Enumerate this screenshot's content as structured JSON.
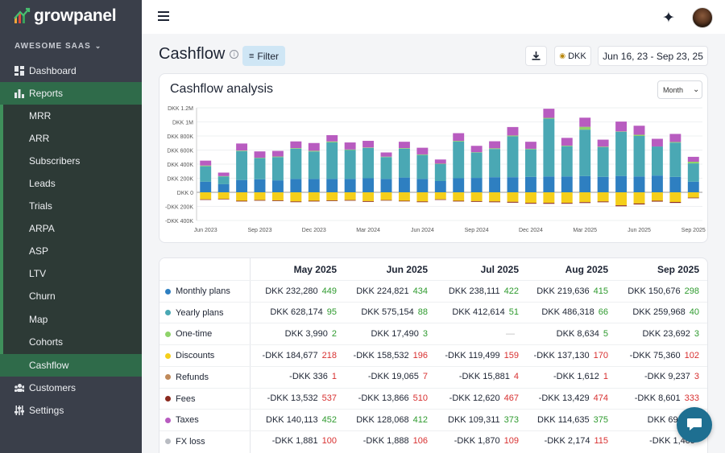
{
  "app": {
    "name": "growpanel"
  },
  "sidebar": {
    "workspace": "AWESOME SAAS",
    "items": [
      {
        "label": "Dashboard",
        "icon": "dashboard-icon"
      },
      {
        "label": "Reports",
        "icon": "bar-chart-icon"
      },
      {
        "label": "MRR"
      },
      {
        "label": "ARR"
      },
      {
        "label": "Subscribers"
      },
      {
        "label": "Leads"
      },
      {
        "label": "Trials"
      },
      {
        "label": "ARPA"
      },
      {
        "label": "ASP"
      },
      {
        "label": "LTV"
      },
      {
        "label": "Churn"
      },
      {
        "label": "Map"
      },
      {
        "label": "Cohorts"
      },
      {
        "label": "Cashflow"
      },
      {
        "label": "Customers",
        "icon": "users-icon"
      },
      {
        "label": "Settings",
        "icon": "sliders-icon"
      }
    ]
  },
  "header": {
    "title": "Cashflow",
    "filter_label": "Filter",
    "currency_label": "DKK",
    "date_range": "Jun 16, 23 - Sep 23, 25"
  },
  "chart_card": {
    "title": "Cashflow analysis",
    "period": "Month"
  },
  "chart_data": {
    "type": "bar",
    "ylabel": "",
    "y_ticks": [
      "DKK 1.2M",
      "DKK 1M",
      "DKK 800K",
      "DKK 600K",
      "DKK 400K",
      "DKK 200K",
      "DKK 0",
      "-DKK 200K",
      "-DKK 400K"
    ],
    "ylim": [
      -400000,
      1200000
    ],
    "x_ticks": [
      "Jun 2023",
      "Sep 2023",
      "Dec 2023",
      "Mar 2024",
      "Jun 2024",
      "Sep 2024",
      "Dec 2024",
      "Mar 2025",
      "Jun 2025",
      "Sep 2025"
    ],
    "categories": [
      "Jun 2023",
      "Jul 2023",
      "Aug 2023",
      "Sep 2023",
      "Oct 2023",
      "Nov 2023",
      "Dec 2023",
      "Jan 2024",
      "Feb 2024",
      "Mar 2024",
      "Apr 2024",
      "May 2024",
      "Jun 2024",
      "Jul 2024",
      "Aug 2024",
      "Sep 2024",
      "Oct 2024",
      "Nov 2024",
      "Dec 2024",
      "Jan 2025",
      "Feb 2025",
      "Mar 2025",
      "Apr 2025",
      "May 2025",
      "Jun 2025",
      "Jul 2025",
      "Aug 2025",
      "Sep 2025"
    ],
    "series": [
      {
        "name": "Monthly plans",
        "color": "#2e7fc1",
        "values": [
          150000,
          115000,
          175000,
          185000,
          170000,
          190000,
          190000,
          190000,
          190000,
          200000,
          190000,
          210000,
          190000,
          160000,
          200000,
          205000,
          215000,
          215000,
          220000,
          225000,
          225000,
          230000,
          220000,
          232280,
          224821,
          238111,
          219636,
          150676
        ]
      },
      {
        "name": "Yearly plans",
        "color": "#4aa8b4",
        "values": [
          220000,
          110000,
          410000,
          300000,
          330000,
          430000,
          390000,
          520000,
          410000,
          430000,
          310000,
          410000,
          340000,
          240000,
          520000,
          360000,
          400000,
          580000,
          390000,
          820000,
          430000,
          660000,
          420000,
          628174,
          575154,
          412614,
          486318,
          259968
        ]
      },
      {
        "name": "One-time",
        "color": "#8fd36a",
        "values": [
          10000,
          5000,
          8000,
          6000,
          8000,
          8000,
          10000,
          12000,
          8000,
          6000,
          6000,
          8000,
          8000,
          6000,
          10000,
          5000,
          10000,
          12000,
          8000,
          12000,
          8000,
          40000,
          8000,
          3990,
          17490,
          0,
          8634,
          23692
        ]
      },
      {
        "name": "Taxes",
        "color": "#b85cc0",
        "values": [
          70000,
          50000,
          100000,
          90000,
          80000,
          95000,
          110000,
          90000,
          100000,
          95000,
          60000,
          90000,
          95000,
          60000,
          110000,
          90000,
          100000,
          120000,
          100000,
          130000,
          110000,
          130000,
          100000,
          140113,
          128068,
          109311,
          114635,
          69655
        ]
      },
      {
        "name": "Discounts",
        "color": "#f5cf1a",
        "values": [
          -100000,
          -95000,
          -120000,
          -110000,
          -115000,
          -130000,
          -120000,
          -115000,
          -110000,
          -125000,
          -110000,
          -120000,
          -130000,
          -100000,
          -120000,
          -125000,
          -130000,
          -135000,
          -150000,
          -150000,
          -150000,
          -140000,
          -130000,
          -184677,
          -158532,
          -119499,
          -137130,
          -75360
        ]
      },
      {
        "name": "Fees",
        "color": "#8b2a1f",
        "values": [
          -8000,
          -7000,
          -10000,
          -9000,
          -9000,
          -10000,
          -10000,
          -9000,
          -9000,
          -10000,
          -8000,
          -9000,
          -10000,
          -8000,
          -10000,
          -10000,
          -11000,
          -12000,
          -12000,
          -13000,
          -12000,
          -12000,
          -11000,
          -13532,
          -13866,
          -12620,
          -13429,
          -8601
        ]
      }
    ]
  },
  "table": {
    "months": [
      "May 2025",
      "Jun 2025",
      "Jul 2025",
      "Aug 2025",
      "Sep 2025"
    ],
    "rows": [
      {
        "label": "Monthly plans",
        "color": "#2e7fc1",
        "cells": [
          {
            "v": "DKK 232,280",
            "c": "449",
            "t": "g"
          },
          {
            "v": "DKK 224,821",
            "c": "434",
            "t": "g"
          },
          {
            "v": "DKK 238,111",
            "c": "422",
            "t": "g"
          },
          {
            "v": "DKK 219,636",
            "c": "415",
            "t": "g"
          },
          {
            "v": "DKK 150,676",
            "c": "298",
            "t": "g"
          }
        ]
      },
      {
        "label": "Yearly plans",
        "color": "#4aa8b4",
        "cells": [
          {
            "v": "DKK 628,174",
            "c": "95",
            "t": "g"
          },
          {
            "v": "DKK 575,154",
            "c": "88",
            "t": "g"
          },
          {
            "v": "DKK 412,614",
            "c": "51",
            "t": "g"
          },
          {
            "v": "DKK 486,318",
            "c": "66",
            "t": "g"
          },
          {
            "v": "DKK 259,968",
            "c": "40",
            "t": "g"
          }
        ]
      },
      {
        "label": "One-time",
        "color": "#8fd36a",
        "cells": [
          {
            "v": "DKK 3,990",
            "c": "2",
            "t": "g"
          },
          {
            "v": "DKK 17,490",
            "c": "3",
            "t": "g"
          },
          {
            "v": "—",
            "c": "",
            "t": "n"
          },
          {
            "v": "DKK 8,634",
            "c": "5",
            "t": "g"
          },
          {
            "v": "DKK 23,692",
            "c": "3",
            "t": "g"
          }
        ]
      },
      {
        "label": "Discounts",
        "color": "#f5cf1a",
        "cells": [
          {
            "v": "-DKK 184,677",
            "c": "218",
            "t": "r"
          },
          {
            "v": "-DKK 158,532",
            "c": "196",
            "t": "r"
          },
          {
            "v": "-DKK 119,499",
            "c": "159",
            "t": "r"
          },
          {
            "v": "-DKK 137,130",
            "c": "170",
            "t": "r"
          },
          {
            "v": "-DKK 75,360",
            "c": "102",
            "t": "r"
          }
        ]
      },
      {
        "label": "Refunds",
        "color": "#c08a5a",
        "cells": [
          {
            "v": "-DKK 336",
            "c": "1",
            "t": "r"
          },
          {
            "v": "-DKK 19,065",
            "c": "7",
            "t": "r"
          },
          {
            "v": "-DKK 15,881",
            "c": "4",
            "t": "r"
          },
          {
            "v": "-DKK 1,612",
            "c": "1",
            "t": "r"
          },
          {
            "v": "-DKK 9,237",
            "c": "3",
            "t": "r"
          }
        ]
      },
      {
        "label": "Fees",
        "color": "#8b2a1f",
        "cells": [
          {
            "v": "-DKK 13,532",
            "c": "537",
            "t": "r"
          },
          {
            "v": "-DKK 13,866",
            "c": "510",
            "t": "r"
          },
          {
            "v": "-DKK 12,620",
            "c": "467",
            "t": "r"
          },
          {
            "v": "-DKK 13,429",
            "c": "474",
            "t": "r"
          },
          {
            "v": "-DKK 8,601",
            "c": "333",
            "t": "r"
          }
        ]
      },
      {
        "label": "Taxes",
        "color": "#b85cc0",
        "cells": [
          {
            "v": "DKK 140,113",
            "c": "452",
            "t": "g"
          },
          {
            "v": "DKK 128,068",
            "c": "412",
            "t": "g"
          },
          {
            "v": "DKK 109,311",
            "c": "373",
            "t": "g"
          },
          {
            "v": "DKK 114,635",
            "c": "375",
            "t": "g"
          },
          {
            "v": "DKK 69,655",
            "c": "",
            "t": "g"
          }
        ]
      },
      {
        "label": "FX loss",
        "color": "#b9bcc2",
        "cells": [
          {
            "v": "-DKK 1,881",
            "c": "100",
            "t": "r"
          },
          {
            "v": "-DKK 1,888",
            "c": "106",
            "t": "r"
          },
          {
            "v": "-DKK 1,870",
            "c": "109",
            "t": "r"
          },
          {
            "v": "-DKK 2,174",
            "c": "115",
            "t": "r"
          },
          {
            "v": "-DKK 1,409",
            "c": "",
            "t": "r"
          }
        ]
      }
    ]
  }
}
